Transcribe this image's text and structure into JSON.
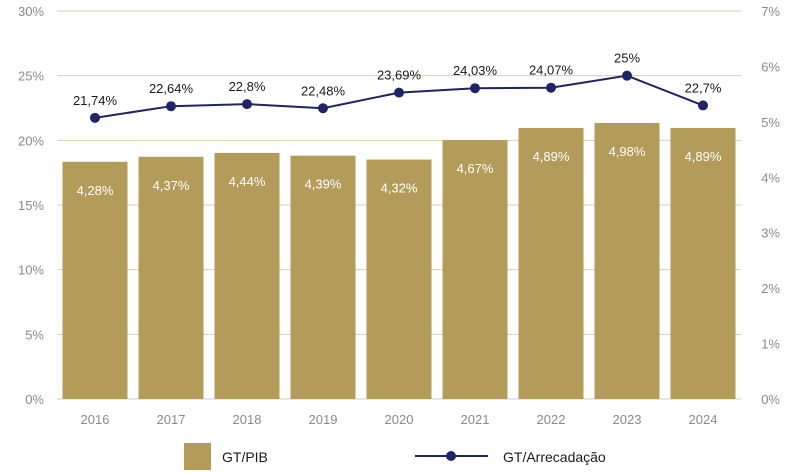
{
  "chart_data": {
    "type": "bar",
    "categories": [
      "2016",
      "2017",
      "2018",
      "2019",
      "2020",
      "2021",
      "2022",
      "2023",
      "2024"
    ],
    "series": [
      {
        "name": "GT/PIB",
        "type": "bar",
        "axis": "right",
        "values": [
          4.28,
          4.37,
          4.44,
          4.39,
          4.32,
          4.67,
          4.89,
          4.98,
          4.89
        ],
        "labels": [
          "4,28%",
          "4,37%",
          "4,44%",
          "4,39%",
          "4,32%",
          "4,67%",
          "4,89%",
          "4,98%",
          "4,89%"
        ],
        "color": "#b39b5a"
      },
      {
        "name": "GT/Arrecadação",
        "type": "line",
        "axis": "left",
        "values": [
          21.74,
          22.64,
          22.8,
          22.48,
          23.69,
          24.03,
          24.07,
          25,
          22.7
        ],
        "labels": [
          "21,74%",
          "22,64%",
          "22,8%",
          "22,48%",
          "23,69%",
          "24,03%",
          "24,07%",
          "25%",
          "22,7%"
        ],
        "color": "#1e2466"
      }
    ],
    "ylim_left": [
      0,
      30
    ],
    "yticks_left": [
      "0%",
      "5%",
      "10%",
      "15%",
      "20%",
      "25%",
      "30%"
    ],
    "ylim_right": [
      0,
      7
    ],
    "yticks_right": [
      "0%",
      "1%",
      "2%",
      "3%",
      "4%",
      "5%",
      "6%",
      "7%"
    ],
    "grid": true,
    "grid_color": "#d9cfa8",
    "legend_position": "bottom"
  }
}
